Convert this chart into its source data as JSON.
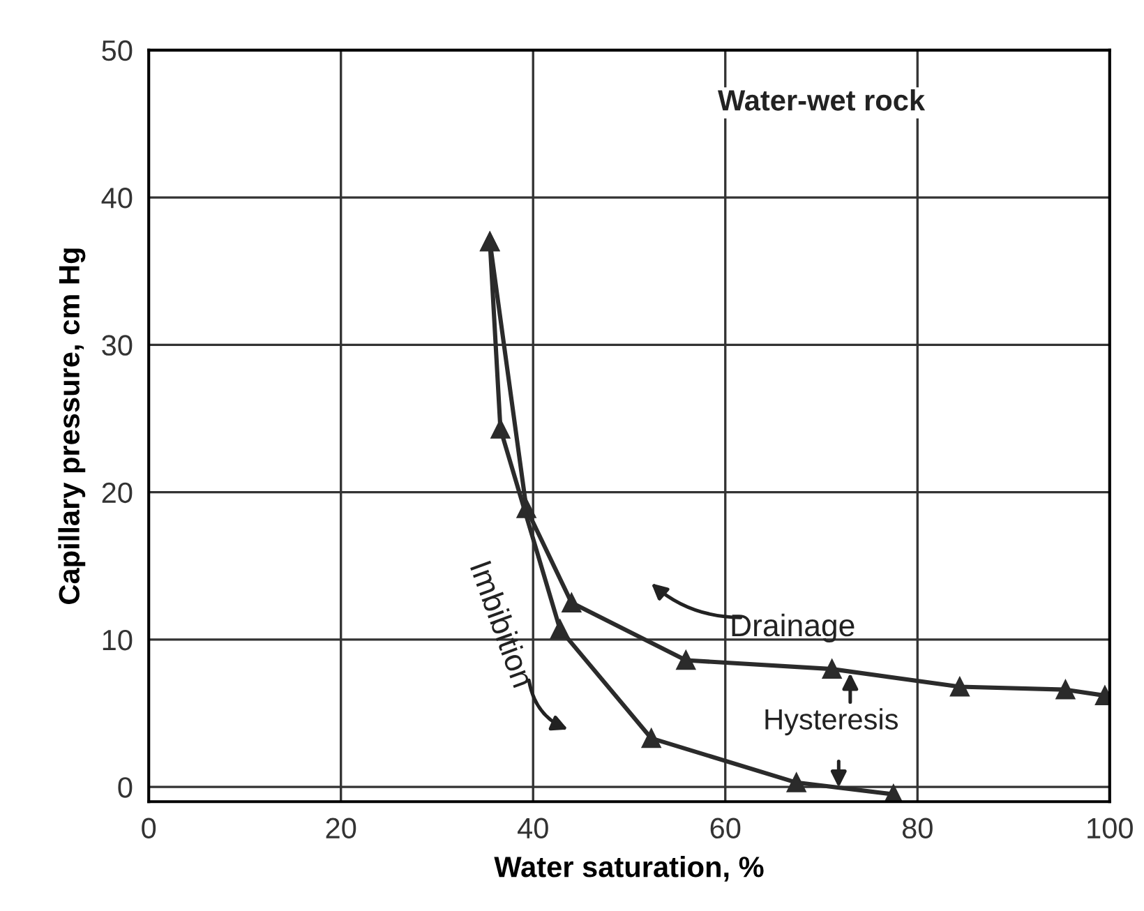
{
  "chart_data": {
    "type": "line",
    "xlabel": "Water saturation, %",
    "ylabel": "Capillary pressure, cm Hg",
    "xlim": [
      0,
      100
    ],
    "xticks": [
      0,
      20,
      40,
      60,
      80,
      100
    ],
    "ylim": [
      -1,
      50
    ],
    "yticks": [
      0,
      10,
      20,
      30,
      40,
      50
    ],
    "grid": true,
    "marker": "triangle",
    "line_style": "solid",
    "series": [
      {
        "color": "#2b2b2b",
        "x": [
          35.5,
          39.3,
          44,
          55.9,
          71.1,
          84.4,
          95.4,
          99.5
        ],
        "values": [
          37,
          18.9,
          12.5,
          8.6,
          8.0,
          6.8,
          6.6,
          6.2
        ]
      },
      {
        "color": "#2b2b2b",
        "x": [
          35.5,
          36.6,
          42.8,
          52.3,
          67.4,
          77.5
        ],
        "values": [
          37,
          24.3,
          10.7,
          3.3,
          0.3,
          -0.5
        ]
      }
    ],
    "annotations": [
      "Water-wet rock",
      "Drainage",
      "Imbibition",
      "Hysteresis"
    ]
  }
}
